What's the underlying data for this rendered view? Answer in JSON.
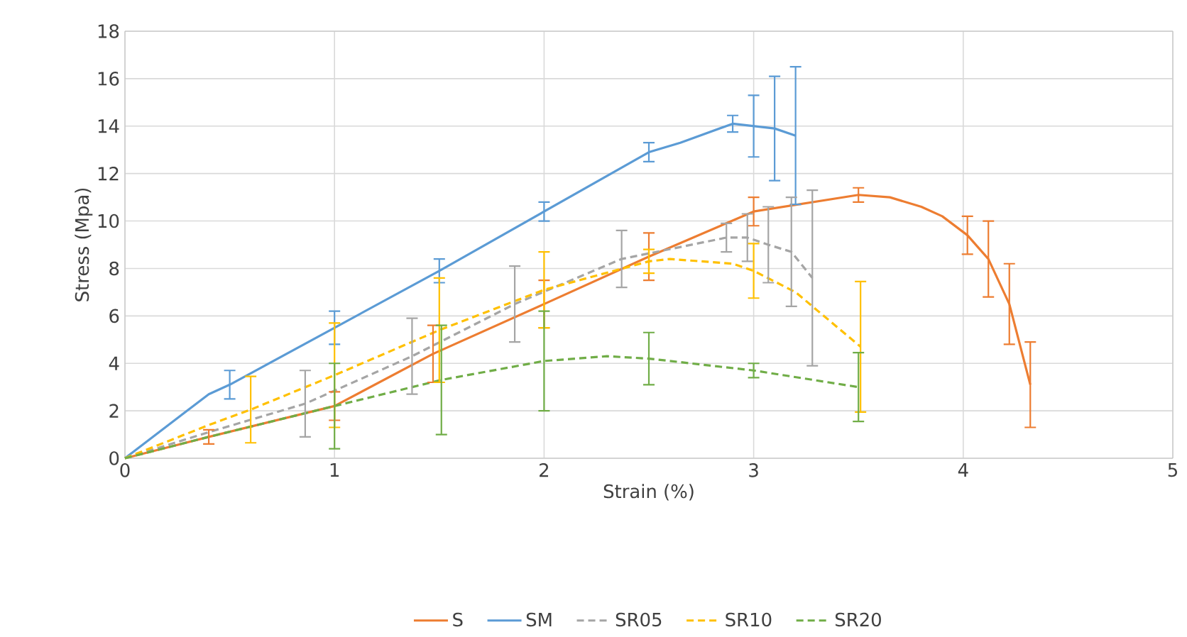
{
  "chart_data": {
    "type": "line",
    "xlabel": "Strain (%)",
    "ylabel": "Stress (Mpa)",
    "xlim": [
      0,
      5
    ],
    "ylim": [
      0,
      18
    ],
    "xticks": [
      0,
      1,
      2,
      3,
      4,
      5
    ],
    "yticks": [
      0,
      2,
      4,
      6,
      8,
      10,
      12,
      14,
      16,
      18
    ],
    "grid": true,
    "legend": "bottom",
    "marker": "none",
    "series": [
      {
        "name": "S",
        "color": "#ed7d31",
        "line_style": "solid",
        "x": [
          0,
          0.4,
          1.0,
          1.47,
          2.0,
          2.5,
          3.0,
          3.5,
          3.65,
          3.8,
          3.9,
          4.02,
          4.12,
          4.22,
          4.32
        ],
        "values": [
          0,
          0.9,
          2.2,
          4.4,
          6.5,
          8.5,
          10.4,
          11.1,
          11.0,
          10.6,
          10.2,
          9.4,
          8.4,
          6.5,
          3.1
        ],
        "errors": [
          null,
          0.3,
          0.6,
          1.2,
          1.0,
          1.0,
          0.6,
          0.3,
          null,
          null,
          null,
          0.8,
          1.6,
          1.7,
          1.8
        ]
      },
      {
        "name": "SM",
        "color": "#5b9bd5",
        "line_style": "solid",
        "x": [
          0,
          0.4,
          0.5,
          1.0,
          1.5,
          2.0,
          2.5,
          2.65,
          2.9,
          3.0,
          3.1,
          3.2
        ],
        "values": [
          0,
          2.7,
          3.1,
          5.5,
          7.9,
          10.4,
          12.9,
          13.3,
          14.1,
          14.0,
          13.9,
          13.6
        ],
        "errors": [
          null,
          null,
          0.6,
          0.7,
          0.5,
          0.4,
          0.4,
          null,
          0.35,
          1.3,
          2.2,
          2.9
        ]
      },
      {
        "name": "SR05",
        "color": "#a5a5a5",
        "line_style": "dashed",
        "x": [
          0,
          0.4,
          0.86,
          1.37,
          1.86,
          2.37,
          2.87,
          2.97,
          3.07,
          3.18,
          3.28
        ],
        "values": [
          0,
          1.1,
          2.3,
          4.3,
          6.5,
          8.4,
          9.3,
          9.3,
          9.0,
          8.7,
          7.6
        ],
        "errors": [
          null,
          null,
          1.4,
          1.6,
          1.6,
          1.2,
          0.6,
          1.0,
          1.6,
          2.3,
          3.7
        ]
      },
      {
        "name": "SR10",
        "color": "#ffc000",
        "line_style": "dashed",
        "x": [
          0,
          0.4,
          0.6,
          1.0,
          1.5,
          2.0,
          2.5,
          2.6,
          2.9,
          3.0,
          3.2,
          3.51
        ],
        "values": [
          0,
          1.4,
          2.05,
          3.5,
          5.4,
          7.1,
          8.3,
          8.4,
          8.2,
          7.9,
          7.0,
          4.7
        ],
        "errors": [
          null,
          null,
          1.4,
          2.2,
          2.2,
          1.6,
          0.5,
          null,
          null,
          1.15,
          null,
          2.75
        ]
      },
      {
        "name": "SR20",
        "color": "#70ad47",
        "line_style": "dashed",
        "x": [
          0,
          0.4,
          1.0,
          1.51,
          2.0,
          2.3,
          2.5,
          3.0,
          3.5
        ],
        "values": [
          0,
          0.9,
          2.2,
          3.3,
          4.1,
          4.3,
          4.2,
          3.7,
          3.0
        ],
        "errors": [
          null,
          null,
          1.8,
          2.3,
          2.1,
          null,
          1.1,
          0.3,
          1.45
        ]
      }
    ]
  }
}
